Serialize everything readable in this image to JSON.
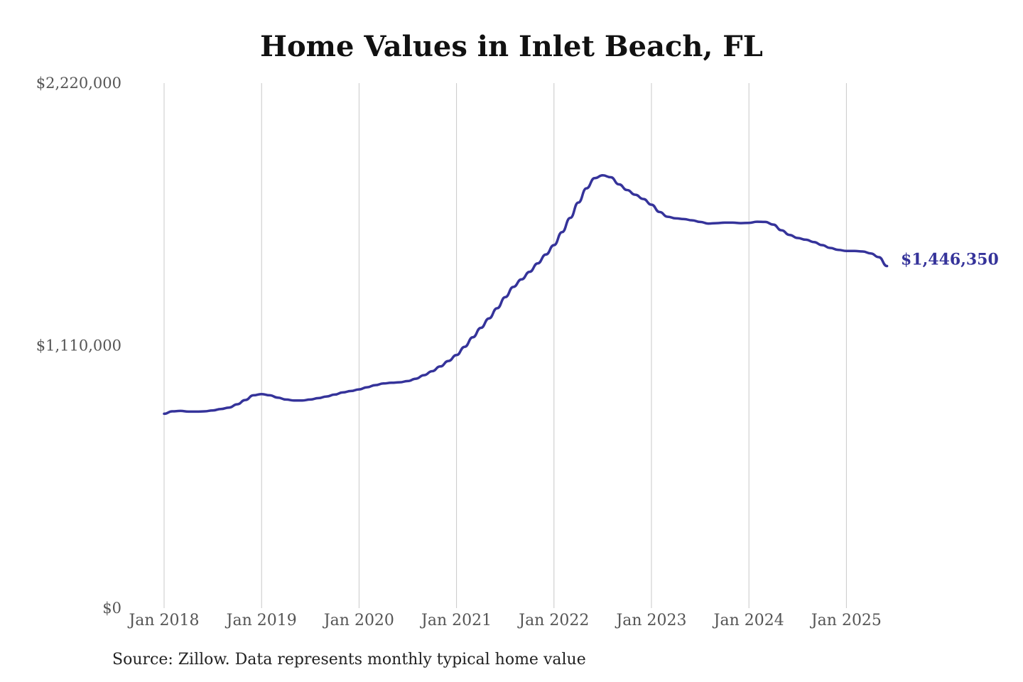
{
  "colors": {
    "line": "#35339a",
    "grid": "#c8c8c8",
    "title": "#111111",
    "tick_text": "#555555"
  },
  "chart_data": {
    "type": "line",
    "title": "Home Values in Inlet Beach, FL",
    "xlabel": "",
    "ylabel": "",
    "ylim": [
      0,
      2220000
    ],
    "yticks": [
      0,
      1110000,
      2220000
    ],
    "ytick_labels": [
      "$0",
      "$1,110,000",
      "$2,220,000"
    ],
    "xticks": [
      "2018-01",
      "2019-01",
      "2020-01",
      "2021-01",
      "2022-01",
      "2023-01",
      "2024-01",
      "2025-01"
    ],
    "xtick_labels": [
      "Jan 2018",
      "Jan 2019",
      "Jan 2020",
      "Jan 2021",
      "Jan 2022",
      "Jan 2023",
      "Jan 2024",
      "Jan 2025"
    ],
    "grid": "vertical",
    "end_label": "$1,446,350",
    "series": [
      {
        "x": [
          "2018-01",
          "2018-02",
          "2018-03",
          "2018-04",
          "2018-05",
          "2018-06",
          "2018-07",
          "2018-08",
          "2018-09",
          "2018-10",
          "2018-11",
          "2018-12",
          "2019-01",
          "2019-02",
          "2019-03",
          "2019-04",
          "2019-05",
          "2019-06",
          "2019-07",
          "2019-08",
          "2019-09",
          "2019-10",
          "2019-11",
          "2019-12",
          "2020-01",
          "2020-02",
          "2020-03",
          "2020-04",
          "2020-05",
          "2020-06",
          "2020-07",
          "2020-08",
          "2020-09",
          "2020-10",
          "2020-11",
          "2020-12",
          "2021-01",
          "2021-02",
          "2021-03",
          "2021-04",
          "2021-05",
          "2021-06",
          "2021-07",
          "2021-08",
          "2021-09",
          "2021-10",
          "2021-11",
          "2021-12",
          "2022-01",
          "2022-02",
          "2022-03",
          "2022-04",
          "2022-05",
          "2022-06",
          "2022-07",
          "2022-08",
          "2022-09",
          "2022-10",
          "2022-11",
          "2022-12",
          "2023-01",
          "2023-02",
          "2023-03",
          "2023-04",
          "2023-05",
          "2023-06",
          "2023-07",
          "2023-08",
          "2023-09",
          "2023-10",
          "2023-11",
          "2023-12",
          "2024-01",
          "2024-02",
          "2024-03",
          "2024-04",
          "2024-05",
          "2024-06",
          "2024-07",
          "2024-08",
          "2024-09",
          "2024-10",
          "2024-11",
          "2024-12",
          "2025-01",
          "2025-02",
          "2025-03",
          "2025-04",
          "2025-05",
          "2025-06"
        ],
        "values": [
          822000,
          832000,
          834000,
          831000,
          831000,
          832000,
          836000,
          842000,
          848000,
          862000,
          880000,
          900000,
          905000,
          900000,
          890000,
          882000,
          878000,
          878000,
          882000,
          888000,
          895000,
          903000,
          912000,
          918000,
          925000,
          934000,
          943000,
          950000,
          953000,
          955000,
          960000,
          970000,
          985000,
          1002000,
          1022000,
          1045000,
          1070000,
          1105000,
          1145000,
          1185000,
          1225000,
          1268000,
          1315000,
          1358000,
          1390000,
          1422000,
          1458000,
          1495000,
          1535000,
          1590000,
          1650000,
          1715000,
          1775000,
          1818000,
          1830000,
          1822000,
          1792000,
          1768000,
          1748000,
          1730000,
          1706000,
          1675000,
          1655000,
          1648000,
          1645000,
          1640000,
          1633000,
          1626000,
          1628000,
          1630000,
          1630000,
          1628000,
          1629000,
          1634000,
          1633000,
          1622000,
          1598000,
          1578000,
          1565000,
          1558000,
          1548000,
          1535000,
          1523000,
          1515000,
          1510000,
          1510000,
          1508000,
          1500000,
          1484000,
          1446350
        ]
      }
    ]
  },
  "source_note": "Source: Zillow. Data represents monthly typical home value"
}
